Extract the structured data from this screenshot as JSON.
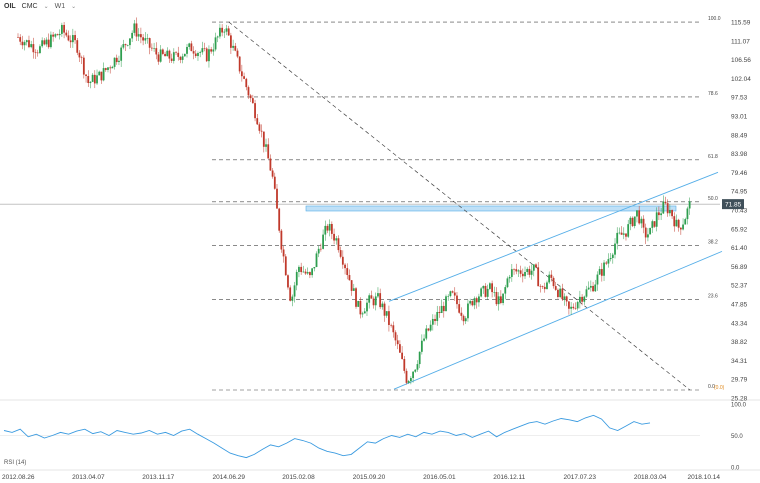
{
  "header": {
    "symbol": "OIL",
    "source": "CMC",
    "timeframe": "W1",
    "chevron": "⌄",
    "symbol_chevron": "⌄"
  },
  "rsi_label": "RSI (14)",
  "colors": {
    "up": "#2e9e4f",
    "down": "#c0392b",
    "channel": "#55aee8",
    "fib": "#444444",
    "rsi": "#3b9be0",
    "price_tag": "#40505a",
    "zone": "#bfe0f7"
  },
  "chart_data": {
    "type": "candlestick",
    "ylim": [
      25.28,
      118.0
    ],
    "y_ticks": [
      "115.59",
      "111.07",
      "106.56",
      "102.04",
      "97.53",
      "93.01",
      "88.49",
      "83.98",
      "79.46",
      "74.95",
      "70.43",
      "65.92",
      "61.40",
      "56.89",
      "52.37",
      "47.85",
      "43.34",
      "38.82",
      "34.31",
      "29.79",
      "25.28"
    ],
    "x_ticks": [
      "2012.08.26",
      "2013.04.07",
      "2013.11.17",
      "2014.06.29",
      "2015.02.08",
      "2015.09.20",
      "2016.05.01",
      "2016.12.11",
      "2017.07.23",
      "2018.03.04",
      "2018.10.14"
    ],
    "current_price": "71.85",
    "fib_levels": [
      {
        "label": "100.0",
        "value": 115.59
      },
      {
        "label": "78.6",
        "value": 97.6
      },
      {
        "label": "61.8",
        "value": 82.5
      },
      {
        "label": "50.0",
        "value": 72.4
      },
      {
        "label": "38.2",
        "value": 61.9
      },
      {
        "label": "23.6",
        "value": 48.9
      },
      {
        "label": "0.0",
        "value": 27.2
      }
    ],
    "fib_zero_extra": "(0.0)",
    "resistance_zone": [
      70.2,
      71.4
    ],
    "trend": [
      {
        "date": "2012.08.26",
        "close": 112.0
      },
      {
        "date": "2012.11.01",
        "close": 109.0
      },
      {
        "date": "2013.01.15",
        "close": 113.5
      },
      {
        "date": "2013.03.01",
        "close": 110.0
      },
      {
        "date": "2013.04.07",
        "close": 101.0
      },
      {
        "date": "2013.05.20",
        "close": 103.0
      },
      {
        "date": "2013.07.15",
        "close": 108.0
      },
      {
        "date": "2013.09.01",
        "close": 114.0
      },
      {
        "date": "2013.10.15",
        "close": 110.0
      },
      {
        "date": "2013.11.17",
        "close": 107.5
      },
      {
        "date": "2014.01.10",
        "close": 107.0
      },
      {
        "date": "2014.03.01",
        "close": 109.5
      },
      {
        "date": "2014.04.20",
        "close": 107.5
      },
      {
        "date": "2014.06.15",
        "close": 114.5
      },
      {
        "date": "2014.06.29",
        "close": 112.0
      },
      {
        "date": "2014.08.15",
        "close": 102.0
      },
      {
        "date": "2014.10.01",
        "close": 92.0
      },
      {
        "date": "2014.11.15",
        "close": 79.0
      },
      {
        "date": "2014.12.15",
        "close": 62.0
      },
      {
        "date": "2015.01.15",
        "close": 48.5
      },
      {
        "date": "2015.02.08",
        "close": 57.0
      },
      {
        "date": "2015.03.15",
        "close": 54.0
      },
      {
        "date": "2015.04.15",
        "close": 62.0
      },
      {
        "date": "2015.05.10",
        "close": 66.5
      },
      {
        "date": "2015.06.10",
        "close": 63.0
      },
      {
        "date": "2015.07.10",
        "close": 56.0
      },
      {
        "date": "2015.08.20",
        "close": 46.0
      },
      {
        "date": "2015.09.20",
        "close": 48.5
      },
      {
        "date": "2015.10.20",
        "close": 49.0
      },
      {
        "date": "2015.11.20",
        "close": 44.0
      },
      {
        "date": "2015.12.20",
        "close": 37.5
      },
      {
        "date": "2016.01.20",
        "close": 29.5
      },
      {
        "date": "2016.02.15",
        "close": 33.0
      },
      {
        "date": "2016.03.15",
        "close": 40.0
      },
      {
        "date": "2016.05.01",
        "close": 46.0
      },
      {
        "date": "2016.06.10",
        "close": 50.0
      },
      {
        "date": "2016.07.20",
        "close": 45.0
      },
      {
        "date": "2016.08.20",
        "close": 49.5
      },
      {
        "date": "2016.10.10",
        "close": 51.5
      },
      {
        "date": "2016.11.15",
        "close": 47.5
      },
      {
        "date": "2016.12.11",
        "close": 55.5
      },
      {
        "date": "2017.01.20",
        "close": 55.8
      },
      {
        "date": "2017.03.01",
        "close": 56.0
      },
      {
        "date": "2017.03.25",
        "close": 51.0
      },
      {
        "date": "2017.04.20",
        "close": 54.5
      },
      {
        "date": "2017.06.20",
        "close": 46.0
      },
      {
        "date": "2017.07.23",
        "close": 49.5
      },
      {
        "date": "2017.09.01",
        "close": 52.0
      },
      {
        "date": "2017.10.15",
        "close": 57.5
      },
      {
        "date": "2017.11.20",
        "close": 63.5
      },
      {
        "date": "2017.12.20",
        "close": 65.5
      },
      {
        "date": "2018.01.25",
        "close": 70.0
      },
      {
        "date": "2018.02.15",
        "close": 64.5
      },
      {
        "date": "2018.03.04",
        "close": 65.0
      },
      {
        "date": "2018.03.25",
        "close": 69.0
      },
      {
        "date": "2018.04.20",
        "close": 71.5
      },
      {
        "date": "2018.05.10",
        "close": 70.0
      },
      {
        "date": "2018.06.01",
        "close": 66.0
      },
      {
        "date": "2018.06.20",
        "close": 68.0
      },
      {
        "date": "2018.07.10",
        "close": 71.85
      }
    ],
    "rsi": {
      "ylim": [
        0,
        100
      ],
      "y_ticks": [
        "100.0",
        "50.0",
        "0.0"
      ],
      "values": [
        58,
        55,
        60,
        48,
        52,
        46,
        50,
        55,
        52,
        57,
        60,
        53,
        56,
        50,
        58,
        55,
        52,
        54,
        58,
        52,
        55,
        50,
        57,
        60,
        52,
        45,
        38,
        30,
        22,
        18,
        15,
        20,
        28,
        35,
        32,
        38,
        45,
        42,
        38,
        30,
        25,
        22,
        18,
        20,
        30,
        40,
        38,
        45,
        50,
        47,
        52,
        48,
        55,
        52,
        57,
        55,
        50,
        53,
        47,
        52,
        57,
        48,
        55,
        60,
        65,
        70,
        72,
        68,
        73,
        77,
        75,
        72,
        78,
        82,
        76,
        62,
        58,
        65,
        72,
        68,
        70
      ]
    }
  }
}
